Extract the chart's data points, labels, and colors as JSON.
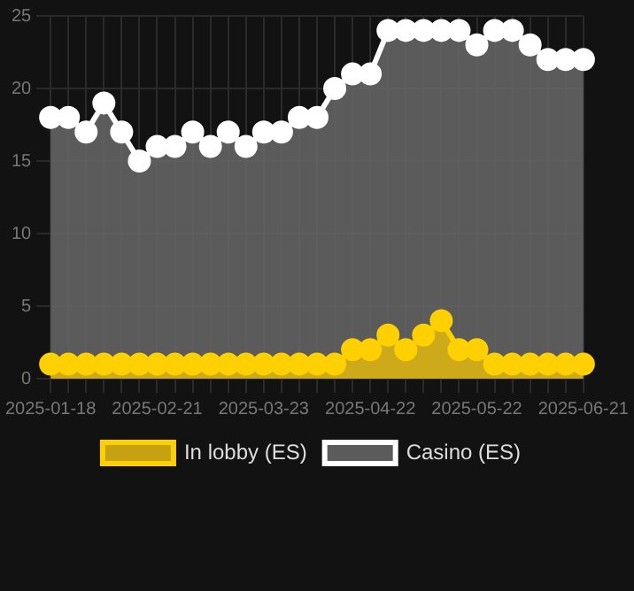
{
  "chart_data": {
    "type": "area",
    "categories": [
      "2025-01-18",
      null,
      null,
      null,
      null,
      null,
      "2025-02-21",
      null,
      null,
      null,
      null,
      null,
      "2025-03-23",
      null,
      null,
      null,
      null,
      null,
      "2025-04-22",
      null,
      null,
      null,
      null,
      null,
      "2025-05-22",
      null,
      null,
      null,
      null,
      null,
      "2025-06-21"
    ],
    "series": [
      {
        "name": "In lobby (ES)",
        "color": "#ffd000",
        "values": [
          1,
          1,
          1,
          1,
          1,
          1,
          1,
          1,
          1,
          1,
          1,
          1,
          1,
          1,
          1,
          1,
          1,
          2,
          2,
          3,
          2,
          3,
          4,
          2,
          2,
          1,
          1,
          1,
          1,
          1,
          1
        ]
      },
      {
        "name": "Casino (ES)",
        "color": "#ffffff",
        "values": [
          18,
          18,
          17,
          19,
          17,
          15,
          16,
          16,
          17,
          16,
          17,
          16,
          17,
          17,
          18,
          18,
          20,
          21,
          21,
          24,
          24,
          24,
          24,
          24,
          23,
          24,
          24,
          23,
          22,
          22,
          22
        ]
      }
    ],
    "ylim": [
      0,
      25
    ],
    "yticks": [
      0,
      5,
      10,
      15,
      20,
      25
    ],
    "grid": true,
    "legend": "bottom",
    "marker": "circle"
  }
}
